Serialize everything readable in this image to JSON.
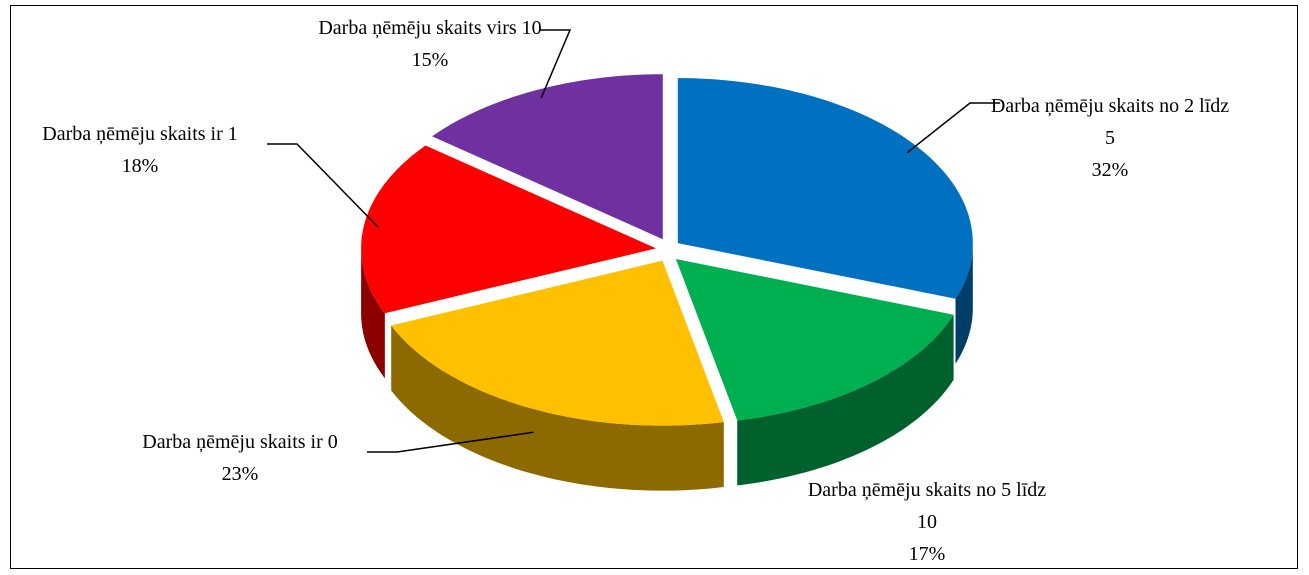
{
  "chart_data": {
    "type": "pie",
    "categories": [
      "Darba ņēmēju skaits no 2 līdz 5",
      "Darba ņēmēju skaits no 5 līdz 10",
      "Darba ņēmēju skaits ir 0",
      "Darba ņēmēju skaits ir 1",
      "Darba ņēmēju skaits virs 10"
    ],
    "values": [
      32,
      17,
      23,
      18,
      15
    ],
    "value_labels": [
      "32%",
      "17%",
      "23%",
      "18%",
      "15%"
    ],
    "colors": [
      "#0070c0",
      "#00b050",
      "#ffc000",
      "#ff0000",
      "#7030a0"
    ]
  }
}
